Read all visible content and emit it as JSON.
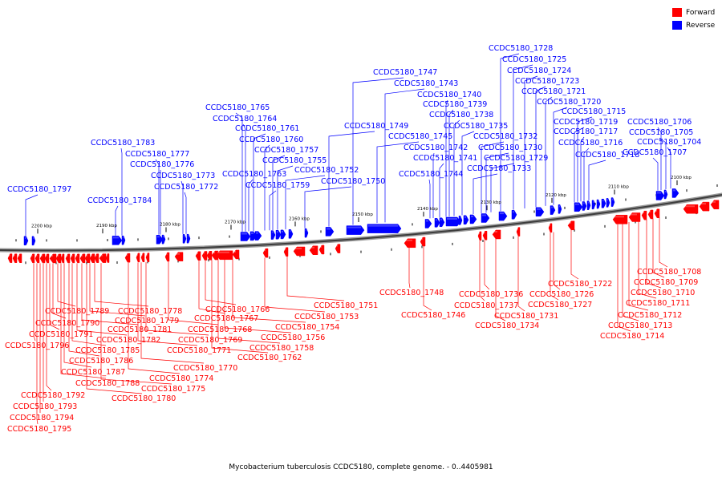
{
  "footer": "Mycobacterium tuberculosis CCDC5180, complete genome. - 0..4405981",
  "legend": {
    "forward_label": "Forward",
    "reverse_label": "Reverse",
    "forward_color": "#ff0000",
    "reverse_color": "#0000ff"
  },
  "ticks": [
    {
      "label": "2100 kbp"
    },
    {
      "label": "2110 kbp"
    },
    {
      "label": "2120 kbp"
    },
    {
      "label": "2130 kbp"
    },
    {
      "label": "2140 kbp"
    },
    {
      "label": "2150 kbp"
    },
    {
      "label": "2160 kbp"
    },
    {
      "label": "2170 kbp"
    },
    {
      "label": "2180 kbp"
    },
    {
      "label": "2190 kbp"
    },
    {
      "label": "2200 kbp"
    }
  ],
  "reverse_labels": [
    "CCDC5180_1797",
    "CCDC5180_1784",
    "CCDC5180_1783",
    "CCDC5180_1777",
    "CCDC5180_1776",
    "CCDC5180_1773",
    "CCDC5180_1772",
    "CCDC5180_1765",
    "CCDC5180_1764",
    "CCDC5180_1763",
    "CCDC5180_1761",
    "CCDC5180_1760",
    "CCDC5180_1759",
    "CCDC5180_1757",
    "CCDC5180_1755",
    "CCDC5180_1752",
    "CCDC5180_1750",
    "CCDC5180_1749",
    "CCDC5180_1747",
    "CCDC5180_1745",
    "CCDC5180_1744",
    "CCDC5180_1743",
    "CCDC5180_1742",
    "CCDC5180_1741",
    "CCDC5180_1740",
    "CCDC5180_1739",
    "CCDC5180_1738",
    "CCDC5180_1735",
    "CCDC5180_1733",
    "CCDC5180_1732",
    "CCDC5180_1730",
    "CCDC5180_1729",
    "CCDC5180_1728",
    "CCDC5180_1725",
    "CCDC5180_1724",
    "CCDC5180_1723",
    "CCDC5180_1721",
    "CCDC5180_1720",
    "CCDC5180_1719",
    "CCDC5180_1718",
    "CCDC5180_1717",
    "CCDC5180_1716",
    "CCDC5180_1715",
    "CCDC5180_1707",
    "CCDC5180_1706",
    "CCDC5180_1705",
    "CCDC5180_1704"
  ],
  "forward_labels": [
    "CCDC5180_1796",
    "CCDC5180_1795",
    "CCDC5180_1794",
    "CCDC5180_1793",
    "CCDC5180_1792",
    "CCDC5180_1791",
    "CCDC5180_1790",
    "CCDC5180_1789",
    "CCDC5180_1788",
    "CCDC5180_1787",
    "CCDC5180_1786",
    "CCDC5180_1785",
    "CCDC5180_1782",
    "CCDC5180_1781",
    "CCDC5180_1780",
    "CCDC5180_1779",
    "CCDC5180_1778",
    "CCDC5180_1775",
    "CCDC5180_1774",
    "CCDC5180_1771",
    "CCDC5180_1770",
    "CCDC5180_1769",
    "CCDC5180_1768",
    "CCDC5180_1767",
    "CCDC5180_1766",
    "CCDC5180_1762",
    "CCDC5180_1758",
    "CCDC5180_1756",
    "CCDC5180_1754",
    "CCDC5180_1753",
    "CCDC5180_1751",
    "CCDC5180_1748",
    "CCDC5180_1746",
    "CCDC5180_1737",
    "CCDC5180_1736",
    "CCDC5180_1734",
    "CCDC5180_1731",
    "CCDC5180_1727",
    "CCDC5180_1726",
    "CCDC5180_1722",
    "CCDC5180_1714",
    "CCDC5180_1713",
    "CCDC5180_1712",
    "CCDC5180_1711",
    "CCDC5180_1710",
    "CCDC5180_1709",
    "CCDC5180_1708"
  ]
}
